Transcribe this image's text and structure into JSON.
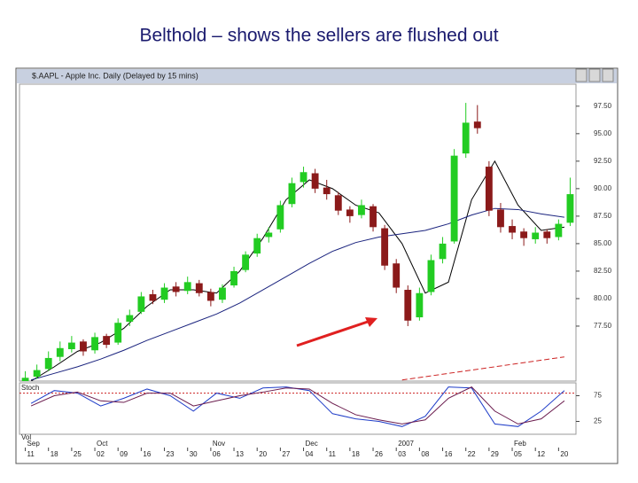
{
  "title": "Belthold – shows the sellers are flushed out",
  "chart_data": [
    {
      "type": "candlestick",
      "title": "$.AAPL - Apple Inc. Daily (Delayed by 15 mins)",
      "x": [
        "11",
        null,
        "18",
        null,
        "25",
        null,
        "02",
        null,
        "09",
        null,
        "16",
        null,
        "23",
        null,
        "30",
        null,
        "06",
        null,
        "13",
        null,
        "20",
        null,
        "27",
        null,
        "04",
        null,
        "11",
        null,
        "18",
        null,
        "26",
        null,
        "03",
        null,
        "08",
        null,
        "16",
        null,
        "22",
        null,
        "29",
        null,
        "05",
        null,
        "12",
        null,
        "20",
        null
      ],
      "months": [
        "Sep",
        null,
        null,
        null,
        null,
        null,
        "Oct",
        null,
        null,
        null,
        null,
        null,
        null,
        null,
        null,
        null,
        "Nov",
        null,
        null,
        null,
        null,
        null,
        null,
        null,
        "Dec",
        null,
        null,
        null,
        null,
        null,
        null,
        null,
        "2007",
        null,
        null,
        null,
        null,
        null,
        null,
        null,
        null,
        null,
        "Feb",
        null,
        null,
        null,
        null,
        null
      ],
      "ohlc": [
        [
          72.5,
          73.4,
          72.2,
          72.8
        ],
        [
          72.9,
          74.0,
          72.7,
          73.5
        ],
        [
          73.6,
          75.2,
          73.4,
          74.6
        ],
        [
          74.7,
          76.1,
          74.3,
          75.5
        ],
        [
          75.4,
          76.6,
          75.1,
          76.0
        ],
        [
          76.1,
          76.3,
          74.8,
          75.2
        ],
        [
          75.3,
          76.9,
          75.0,
          76.5
        ],
        [
          76.6,
          76.8,
          75.5,
          75.8
        ],
        [
          76.0,
          78.2,
          75.8,
          77.8
        ],
        [
          77.9,
          79.0,
          77.5,
          78.5
        ],
        [
          78.8,
          80.6,
          78.6,
          80.2
        ],
        [
          80.4,
          80.8,
          79.5,
          79.8
        ],
        [
          79.9,
          81.4,
          79.6,
          81.0
        ],
        [
          81.1,
          81.5,
          80.2,
          80.6
        ],
        [
          80.7,
          82.0,
          80.4,
          81.5
        ],
        [
          81.4,
          81.7,
          80.2,
          80.5
        ],
        [
          80.6,
          80.9,
          79.3,
          79.8
        ],
        [
          79.9,
          81.3,
          79.6,
          81.0
        ],
        [
          81.2,
          82.9,
          81.0,
          82.5
        ],
        [
          82.6,
          84.3,
          82.4,
          84.0
        ],
        [
          84.1,
          85.9,
          83.8,
          85.5
        ],
        [
          85.6,
          86.5,
          85.1,
          86.0
        ],
        [
          86.3,
          88.9,
          86.0,
          88.5
        ],
        [
          88.6,
          91.0,
          88.3,
          90.5
        ],
        [
          90.6,
          92.0,
          90.1,
          91.5
        ],
        [
          91.4,
          91.8,
          89.6,
          90.0
        ],
        [
          90.1,
          90.8,
          89.0,
          89.5
        ],
        [
          89.4,
          89.7,
          87.6,
          88.0
        ],
        [
          88.1,
          88.4,
          86.9,
          87.5
        ],
        [
          87.6,
          89.0,
          87.3,
          88.5
        ],
        [
          88.4,
          88.6,
          86.1,
          86.5
        ],
        [
          86.4,
          86.7,
          82.6,
          83.0
        ],
        [
          83.2,
          83.6,
          80.5,
          81.0
        ],
        [
          80.8,
          81.2,
          77.5,
          78.0
        ],
        [
          78.3,
          81.0,
          78.0,
          80.5
        ],
        [
          80.6,
          84.0,
          80.3,
          83.5
        ],
        [
          83.6,
          85.6,
          83.2,
          85.0
        ],
        [
          85.2,
          93.6,
          85.0,
          93.0
        ],
        [
          93.2,
          97.8,
          92.8,
          96.0
        ],
        [
          96.1,
          97.6,
          95.0,
          95.5
        ],
        [
          92.0,
          92.5,
          87.5,
          88.0
        ],
        [
          88.1,
          88.7,
          86.0,
          86.5
        ],
        [
          86.6,
          87.2,
          85.4,
          86.0
        ],
        [
          86.1,
          86.4,
          84.8,
          85.5
        ],
        [
          85.4,
          86.5,
          85.0,
          86.0
        ],
        [
          86.1,
          86.3,
          85.0,
          85.5
        ],
        [
          85.6,
          87.2,
          85.3,
          86.8
        ],
        [
          86.9,
          91.0,
          86.6,
          89.5
        ]
      ],
      "up_color": "#22cc22",
      "down_color": "#8b1a1a",
      "overlays": [
        {
          "color": "#000000",
          "values": [
            72.5,
            73.8,
            75.2,
            76.0,
            77.3,
            79.3,
            80.8,
            80.8,
            80.5,
            82.5,
            85.5,
            89.0,
            90.8,
            90.0,
            88.5,
            87.8,
            85.0,
            80.5,
            81.5,
            89.0,
            92.5,
            88.5,
            86.2,
            86.5
          ]
        },
        {
          "color": "#1a237e",
          "values": [
            72.6,
            73.2,
            73.8,
            74.5,
            75.3,
            76.2,
            77.0,
            77.8,
            78.6,
            79.6,
            80.8,
            82.0,
            83.2,
            84.3,
            85.1,
            85.6,
            85.9,
            86.2,
            86.8,
            87.6,
            88.2,
            88.1,
            87.7,
            87.4
          ]
        },
        {
          "color": "#cc2222",
          "values": [
            null,
            null,
            null,
            null,
            null,
            null,
            null,
            null,
            null,
            null,
            null,
            null,
            null,
            null,
            null,
            null,
            72.6,
            72.9,
            73.2,
            73.5,
            73.8,
            74.1,
            74.4,
            74.7
          ]
        }
      ],
      "ylim": [
        72.5,
        99.5
      ],
      "yticks": [
        {
          "value": 77.5,
          "label": "77.50"
        },
        {
          "value": 80,
          "label": "80.00"
        },
        {
          "value": 82.5,
          "label": "82.50"
        },
        {
          "value": 85,
          "label": "85.00"
        },
        {
          "value": 87.5,
          "label": "87.50"
        },
        {
          "value": 90,
          "label": "90.00"
        },
        {
          "value": 92.5,
          "label": "92.50"
        },
        {
          "value": 95,
          "label": "95.00"
        },
        {
          "value": 97.5,
          "label": "97.50"
        }
      ],
      "volume_label": "Vol"
    },
    {
      "type": "line",
      "title": "Stoch",
      "series": [
        {
          "color": "#1e3cc8",
          "values": [
            60,
            85,
            80,
            55,
            70,
            88,
            75,
            45,
            80,
            70,
            90,
            92,
            85,
            40,
            30,
            25,
            15,
            35,
            92,
            90,
            20,
            15,
            45,
            85
          ]
        },
        {
          "color": "#6a1b4d",
          "values": [
            55,
            75,
            82,
            65,
            62,
            80,
            80,
            55,
            65,
            75,
            82,
            90,
            88,
            60,
            38,
            28,
            20,
            28,
            70,
            92,
            45,
            20,
            30,
            65
          ]
        }
      ],
      "ylim": [
        0,
        100
      ],
      "yticks": [
        25,
        75
      ],
      "reference": 80,
      "reference_color": "#cc2222"
    }
  ]
}
